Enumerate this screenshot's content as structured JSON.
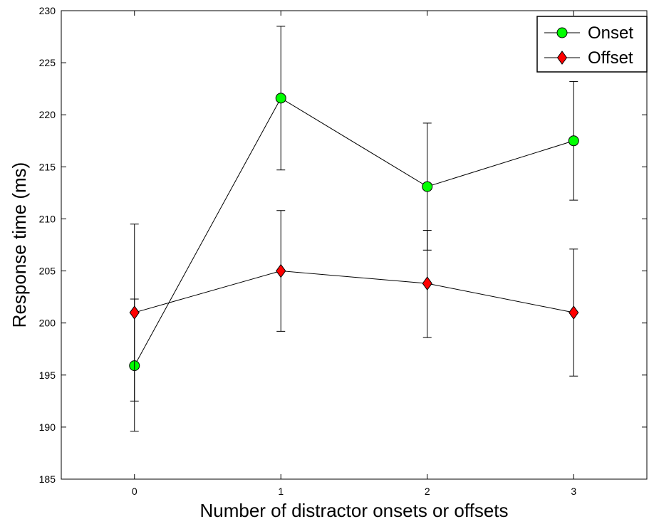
{
  "chart_data": {
    "type": "line",
    "title": "",
    "xlabel": "Number of distractor onsets or offsets",
    "ylabel": "Response time (ms)",
    "x": [
      0,
      1,
      2,
      3
    ],
    "xlim": [
      -0.5,
      3.5
    ],
    "ylim": [
      185,
      230
    ],
    "xticks": [
      "0",
      "1",
      "2",
      "3"
    ],
    "yticks": [
      "185",
      "190",
      "195",
      "200",
      "205",
      "210",
      "215",
      "220",
      "225",
      "230"
    ],
    "grid": false,
    "legend_position": "top-right",
    "series": [
      {
        "name": "Onset",
        "marker": "circle",
        "marker_color": "#00ff00",
        "line_color": "#000000",
        "values": [
          195.9,
          221.6,
          213.1,
          217.5
        ],
        "error_low": [
          189.6,
          214.7,
          207.0,
          211.8
        ],
        "error_high": [
          202.3,
          228.5,
          219.2,
          223.2
        ]
      },
      {
        "name": "Offset",
        "marker": "diamond",
        "marker_color": "#ff0000",
        "line_color": "#000000",
        "values": [
          201.0,
          205.0,
          203.8,
          201.0
        ],
        "error_low": [
          192.5,
          199.2,
          198.6,
          194.9
        ],
        "error_high": [
          209.5,
          210.8,
          208.9,
          207.1
        ]
      }
    ]
  }
}
